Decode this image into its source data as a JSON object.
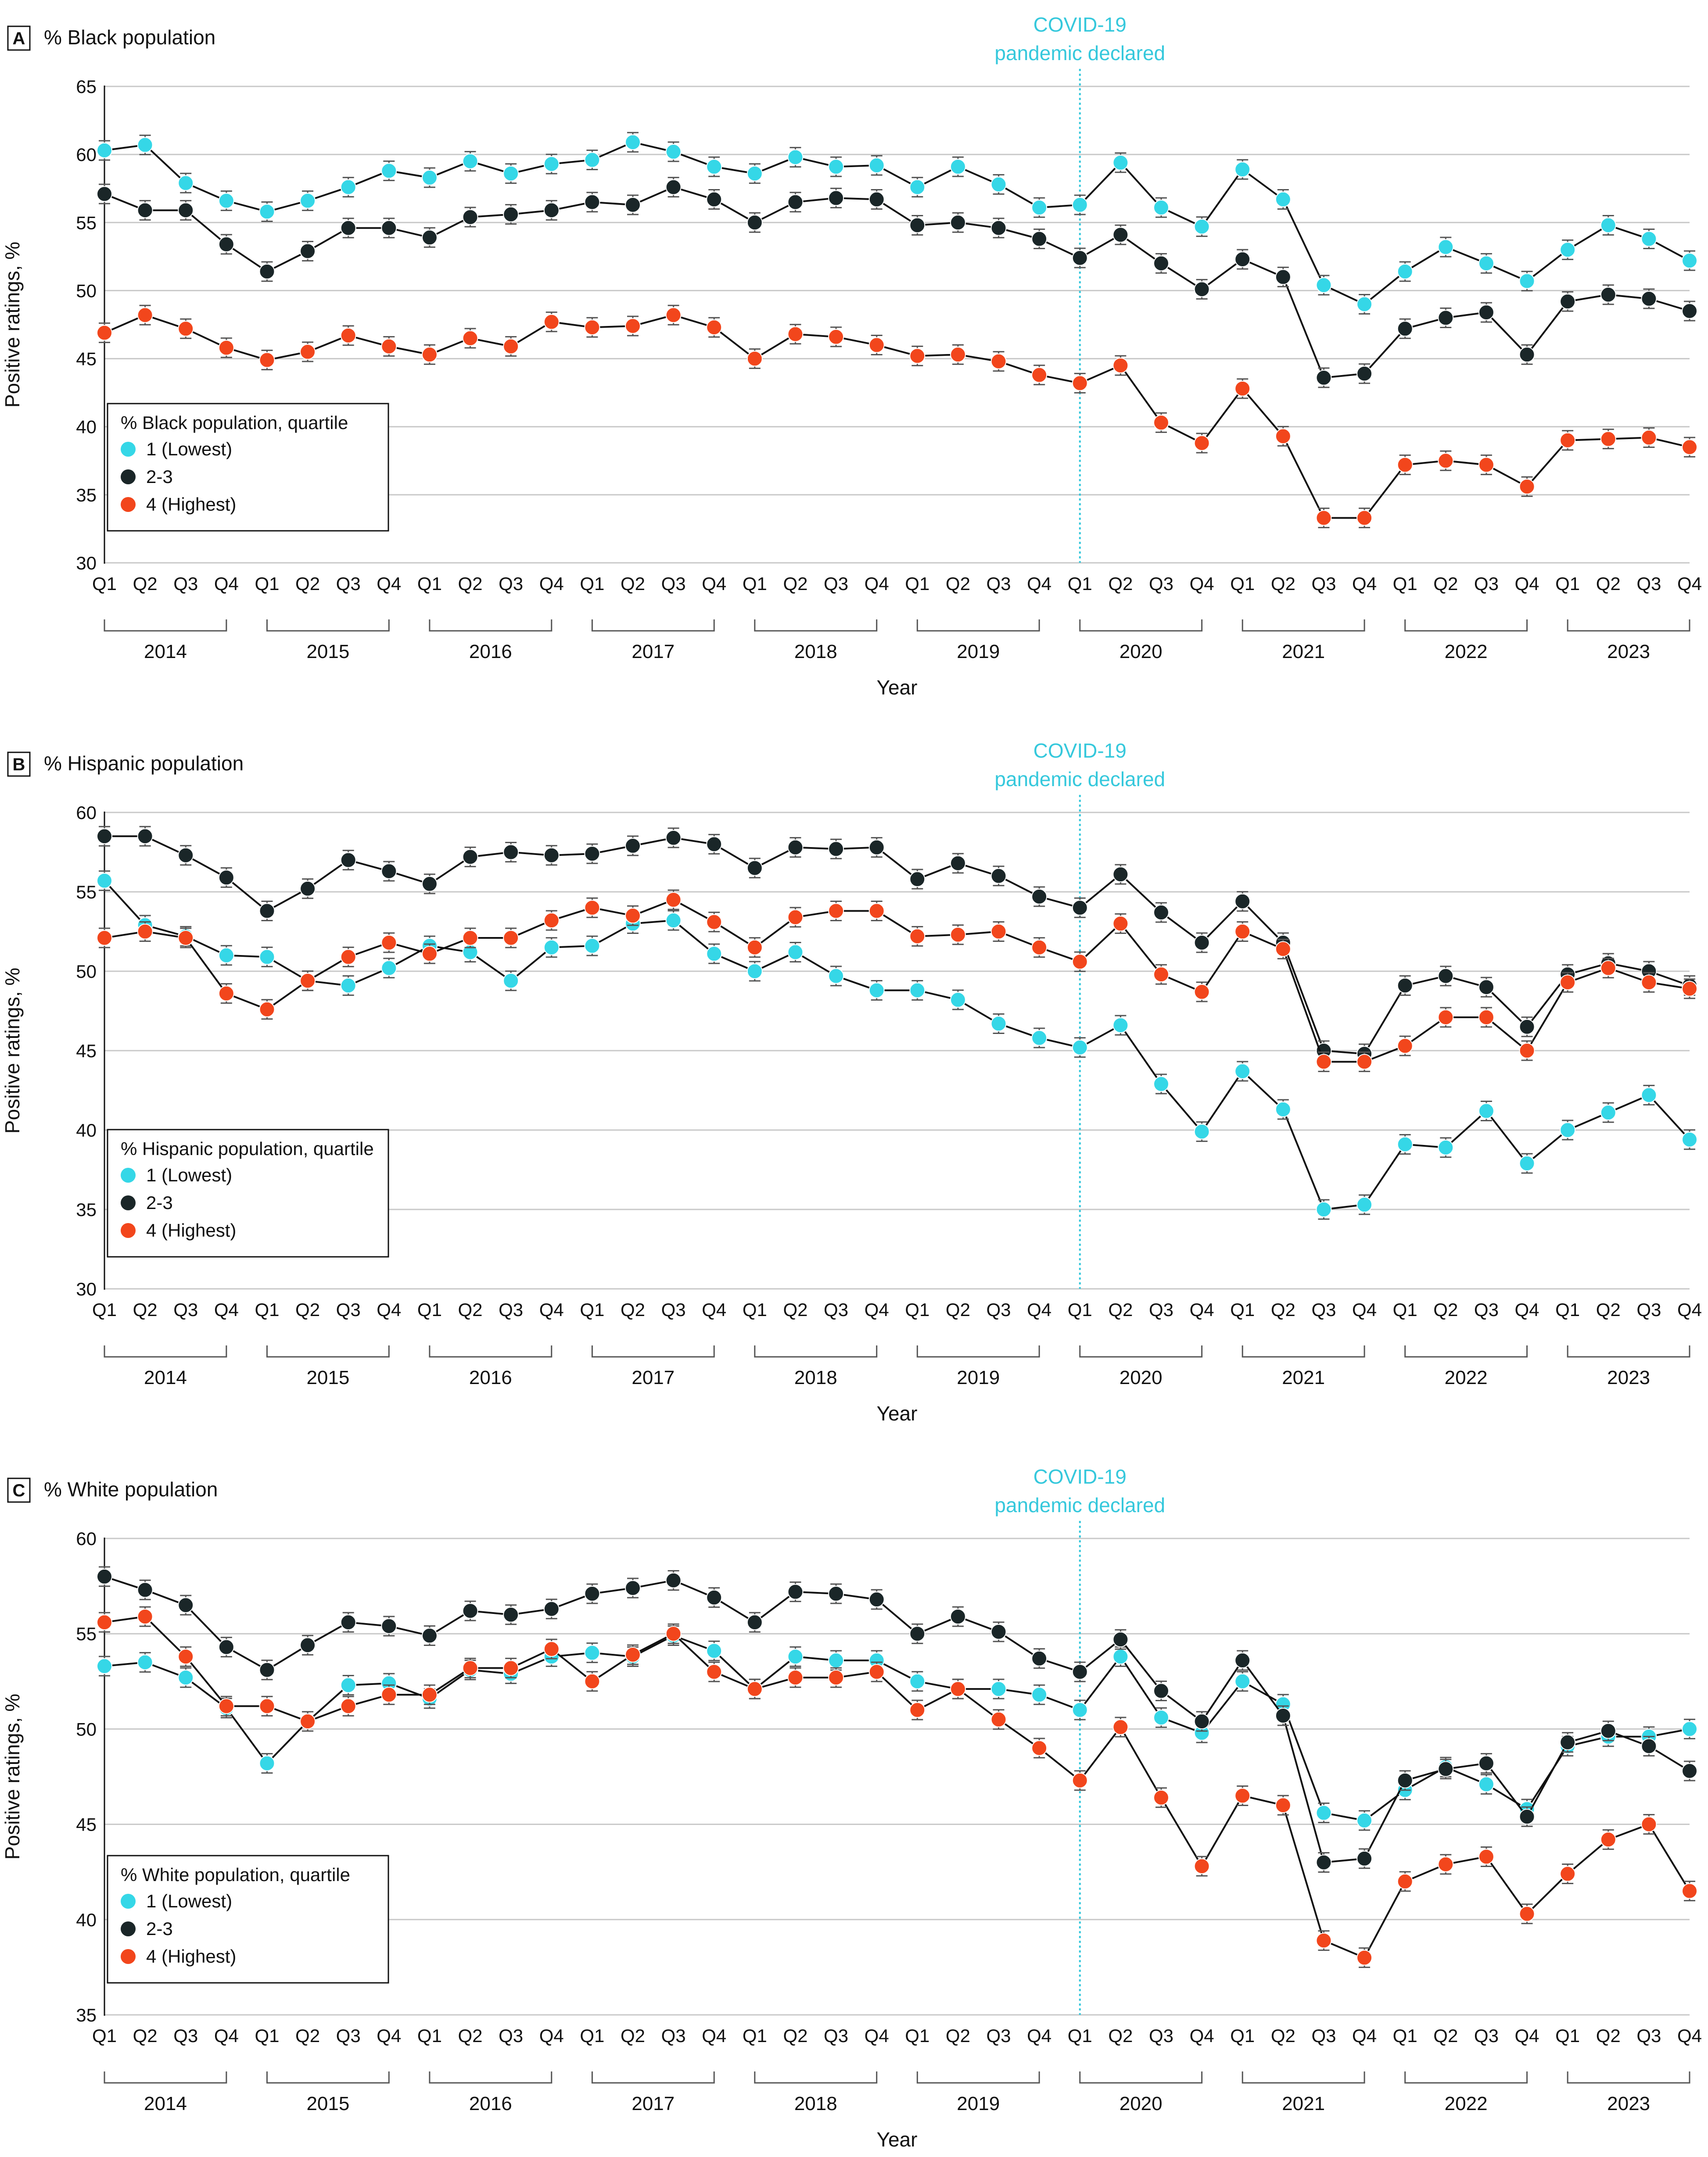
{
  "shared": {
    "quarters": [
      "Q1",
      "Q2",
      "Q3",
      "Q4"
    ],
    "years": [
      "2014",
      "2015",
      "2016",
      "2017",
      "2018",
      "2019",
      "2020",
      "2021",
      "2022",
      "2023"
    ],
    "xlabel": "Year",
    "ylabel": "Positive ratings, %",
    "covid_line1": "COVID-19",
    "covid_line2": "pandemic declared",
    "covid_index": 24,
    "series_names": [
      "1 (Lowest)",
      "2-3",
      "4 (Highest)"
    ]
  },
  "colors": {
    "lowest": "#35d7e7",
    "middle": "#1a2628",
    "highest": "#f2461c",
    "covid": "#35c8dc",
    "grid": "#c8c8c8"
  },
  "chart_data": [
    {
      "type": "line",
      "letter": "A",
      "title": "% Black population",
      "legend_title": "% Black population, quartile",
      "ylim": [
        30,
        65
      ],
      "yticks": [
        30,
        35,
        40,
        45,
        50,
        55,
        60,
        65
      ],
      "series": [
        {
          "name": "1 (Lowest)",
          "values": [
            60.3,
            60.7,
            57.9,
            56.6,
            55.8,
            56.6,
            57.6,
            58.8,
            58.3,
            59.5,
            58.6,
            59.3,
            59.6,
            60.9,
            60.2,
            59.1,
            58.6,
            59.8,
            59.1,
            59.2,
            57.6,
            59.1,
            57.8,
            56.1,
            56.3,
            59.4,
            56.1,
            54.7,
            58.9,
            56.7,
            50.4,
            49.0,
            51.4,
            53.2,
            52.0,
            50.7,
            53.0,
            54.8,
            53.8,
            52.2
          ]
        },
        {
          "name": "2-3",
          "values": [
            57.1,
            55.9,
            55.9,
            53.4,
            51.4,
            52.9,
            54.6,
            54.6,
            53.9,
            55.4,
            55.6,
            55.9,
            56.5,
            56.3,
            57.6,
            56.7,
            55.0,
            56.5,
            56.8,
            56.7,
            54.8,
            55.0,
            54.6,
            53.8,
            52.4,
            54.1,
            52.0,
            50.1,
            52.3,
            51.0,
            43.6,
            43.9,
            47.2,
            48.0,
            48.4,
            45.3,
            49.2,
            49.7,
            49.4,
            48.5
          ]
        },
        {
          "name": "4 (Highest)",
          "values": [
            46.9,
            48.2,
            47.2,
            45.8,
            44.9,
            45.5,
            46.7,
            45.9,
            45.3,
            46.5,
            45.9,
            47.7,
            47.3,
            47.4,
            48.2,
            47.3,
            45.0,
            46.8,
            46.6,
            46.0,
            45.2,
            45.3,
            44.8,
            43.8,
            43.2,
            44.5,
            40.3,
            38.8,
            42.8,
            39.3,
            33.3,
            33.3,
            37.2,
            37.5,
            37.2,
            35.6,
            39.0,
            39.1,
            39.2,
            38.5
          ]
        }
      ]
    },
    {
      "type": "line",
      "letter": "B",
      "title": "% Hispanic population",
      "legend_title": "% Hispanic population, quartile",
      "ylim": [
        30,
        60
      ],
      "yticks": [
        30,
        35,
        40,
        45,
        50,
        55,
        60
      ],
      "series": [
        {
          "name": "1 (Lowest)",
          "values": [
            55.7,
            52.9,
            52.2,
            51.0,
            50.9,
            49.4,
            49.1,
            50.2,
            51.6,
            51.2,
            49.4,
            51.5,
            51.6,
            53.0,
            53.2,
            51.1,
            50.0,
            51.2,
            49.7,
            48.8,
            48.8,
            48.2,
            46.7,
            45.8,
            45.2,
            46.6,
            42.9,
            39.9,
            43.7,
            41.3,
            35.0,
            35.3,
            39.1,
            38.9,
            41.2,
            37.9,
            40.0,
            41.1,
            42.2,
            39.4
          ]
        },
        {
          "name": "2-3",
          "values": [
            58.5,
            58.5,
            57.3,
            55.9,
            53.8,
            55.2,
            57.0,
            56.3,
            55.5,
            57.2,
            57.5,
            57.3,
            57.4,
            57.9,
            58.4,
            58.0,
            56.5,
            57.8,
            57.7,
            57.8,
            55.8,
            56.8,
            56.0,
            54.7,
            54.0,
            56.1,
            53.7,
            51.8,
            54.4,
            51.8,
            45.0,
            44.8,
            49.1,
            49.7,
            49.0,
            46.5,
            49.8,
            50.5,
            50.0,
            49.1
          ]
        },
        {
          "name": "4 (Highest)",
          "values": [
            52.1,
            52.5,
            52.1,
            48.6,
            47.6,
            49.4,
            50.9,
            51.8,
            51.1,
            52.1,
            52.1,
            53.2,
            54.0,
            53.5,
            54.5,
            53.1,
            51.5,
            53.4,
            53.8,
            53.8,
            52.2,
            52.3,
            52.5,
            51.5,
            50.6,
            53.0,
            49.8,
            48.7,
            52.5,
            51.4,
            44.3,
            44.3,
            45.3,
            47.1,
            47.1,
            45.0,
            49.3,
            50.2,
            49.3,
            48.9
          ]
        }
      ]
    },
    {
      "type": "line",
      "letter": "C",
      "title": "% White population",
      "legend_title": "% White population, quartile",
      "ylim": [
        35,
        60
      ],
      "yticks": [
        35,
        40,
        45,
        50,
        55,
        60
      ],
      "series": [
        {
          "name": "1 (Lowest)",
          "values": [
            53.3,
            53.5,
            52.7,
            51.1,
            48.2,
            50.4,
            52.3,
            52.4,
            51.6,
            53.1,
            52.9,
            53.8,
            54.0,
            53.8,
            54.9,
            54.1,
            52.1,
            53.8,
            53.6,
            53.6,
            52.5,
            52.1,
            52.1,
            51.8,
            51.0,
            53.8,
            50.6,
            49.8,
            52.5,
            51.3,
            45.6,
            45.2,
            46.8,
            48.0,
            47.1,
            45.8,
            49.1,
            49.6,
            49.6,
            50.0
          ]
        },
        {
          "name": "2-3",
          "values": [
            58.0,
            57.3,
            56.5,
            54.3,
            53.1,
            54.4,
            55.6,
            55.4,
            54.9,
            56.2,
            56.0,
            56.3,
            57.1,
            57.4,
            57.8,
            56.9,
            55.6,
            57.2,
            57.1,
            56.8,
            55.0,
            55.9,
            55.1,
            53.7,
            53.0,
            54.7,
            52.0,
            50.4,
            53.6,
            50.7,
            43.0,
            43.2,
            47.3,
            47.9,
            48.2,
            45.4,
            49.3,
            49.9,
            49.1,
            47.8
          ]
        },
        {
          "name": "4 (Highest)",
          "values": [
            55.6,
            55.9,
            53.8,
            51.2,
            51.2,
            50.4,
            51.2,
            51.8,
            51.8,
            53.2,
            53.2,
            54.2,
            52.5,
            53.9,
            55.0,
            53.0,
            52.1,
            52.7,
            52.7,
            53.0,
            51.0,
            52.1,
            50.5,
            49.0,
            47.3,
            50.1,
            46.4,
            42.8,
            46.5,
            46.0,
            38.9,
            38.0,
            42.0,
            42.9,
            43.3,
            40.3,
            42.4,
            44.2,
            45.0,
            41.5
          ]
        }
      ]
    }
  ]
}
